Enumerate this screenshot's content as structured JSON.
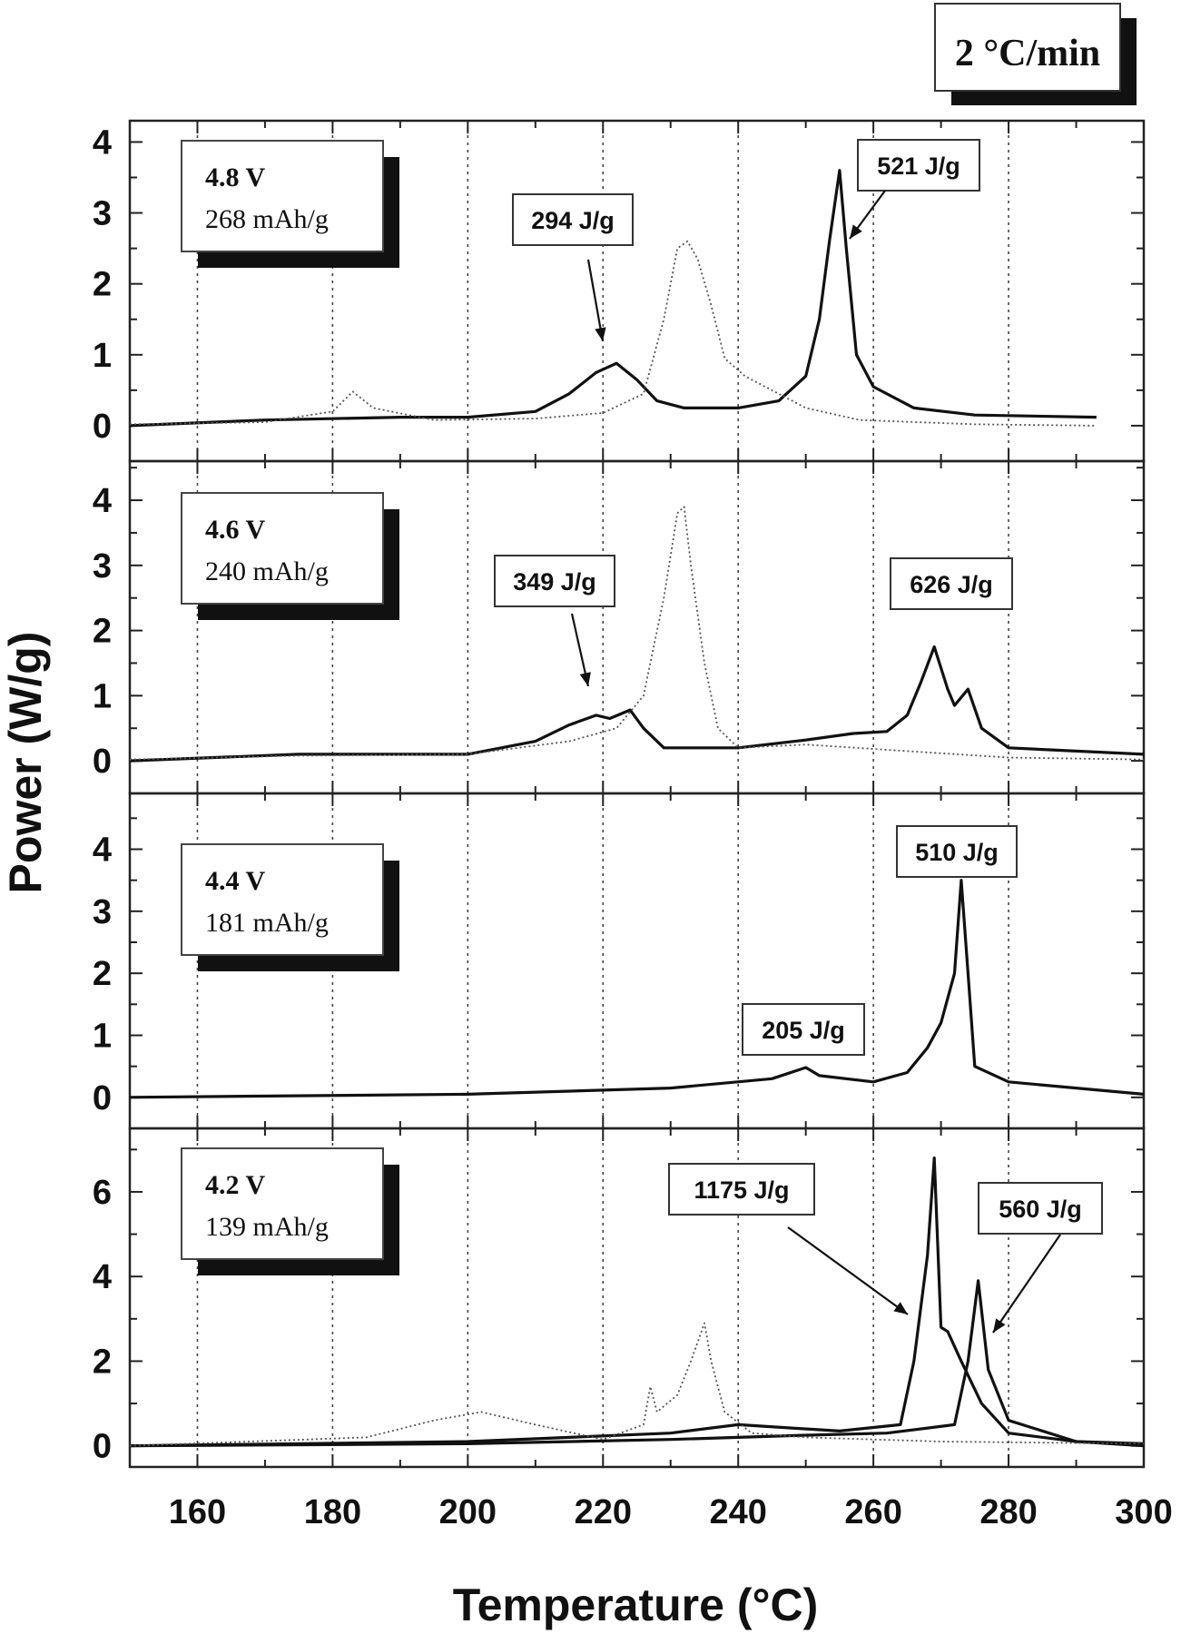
{
  "chart_data": {
    "type": "line",
    "rate_label": "2 °C/min",
    "xlabel": "Temperature (°C)",
    "ylabel": "Power (W/g)",
    "xlim": [
      150,
      300
    ],
    "x_ticks": [
      160,
      180,
      200,
      220,
      240,
      260,
      280,
      300
    ],
    "x_gridlines": [
      160,
      180,
      200,
      220,
      240,
      260,
      280
    ],
    "grid": "vertical dotted",
    "panels": [
      {
        "label_voltage": "4.8 V",
        "label_capacity": "268 mAh/g",
        "ylim": [
          -0.5,
          4.3
        ],
        "y_ticks": [
          0,
          1,
          2,
          3,
          4
        ],
        "annotations": [
          "294 J/g",
          "521 J/g"
        ],
        "series": [
          {
            "style": "solid",
            "points": [
              [
                150,
                0.0
              ],
              [
                170,
                0.08
              ],
              [
                190,
                0.12
              ],
              [
                200,
                0.12
              ],
              [
                210,
                0.2
              ],
              [
                215,
                0.45
              ],
              [
                219,
                0.75
              ],
              [
                222,
                0.88
              ],
              [
                225,
                0.65
              ],
              [
                228,
                0.35
              ],
              [
                232,
                0.25
              ],
              [
                240,
                0.25
              ],
              [
                246,
                0.35
              ],
              [
                250,
                0.7
              ],
              [
                252,
                1.5
              ],
              [
                253.5,
                2.6
              ],
              [
                255,
                3.6
              ],
              [
                256,
                2.5
              ],
              [
                257.5,
                1.0
              ],
              [
                260,
                0.55
              ],
              [
                266,
                0.25
              ],
              [
                275,
                0.15
              ],
              [
                293,
                0.12
              ]
            ]
          },
          {
            "style": "dotted",
            "points": [
              [
                150,
                0.02
              ],
              [
                170,
                0.05
              ],
              [
                180,
                0.2
              ],
              [
                183,
                0.48
              ],
              [
                186,
                0.25
              ],
              [
                195,
                0.08
              ],
              [
                210,
                0.1
              ],
              [
                220,
                0.18
              ],
              [
                226,
                0.45
              ],
              [
                229,
                1.5
              ],
              [
                231,
                2.5
              ],
              [
                232.5,
                2.6
              ],
              [
                234,
                2.35
              ],
              [
                236,
                1.7
              ],
              [
                238,
                0.95
              ],
              [
                241,
                0.7
              ],
              [
                245,
                0.5
              ],
              [
                250,
                0.25
              ],
              [
                258,
                0.08
              ],
              [
                275,
                0.02
              ],
              [
                293,
                0.0
              ]
            ]
          }
        ]
      },
      {
        "label_voltage": "4.6 V",
        "label_capacity": "240 mAh/g",
        "ylim": [
          -0.5,
          4.6
        ],
        "y_ticks": [
          0,
          1,
          2,
          3,
          4
        ],
        "annotations": [
          "349 J/g",
          "626 J/g"
        ],
        "series": [
          {
            "style": "solid",
            "points": [
              [
                150,
                0.0
              ],
              [
                175,
                0.1
              ],
              [
                200,
                0.1
              ],
              [
                210,
                0.3
              ],
              [
                215,
                0.55
              ],
              [
                219,
                0.7
              ],
              [
                221,
                0.65
              ],
              [
                224,
                0.78
              ],
              [
                226,
                0.5
              ],
              [
                229,
                0.2
              ],
              [
                240,
                0.2
              ],
              [
                250,
                0.32
              ],
              [
                257,
                0.42
              ],
              [
                262,
                0.45
              ],
              [
                265,
                0.7
              ],
              [
                267,
                1.2
              ],
              [
                269,
                1.75
              ],
              [
                271,
                1.1
              ],
              [
                272,
                0.85
              ],
              [
                274,
                1.1
              ],
              [
                276,
                0.5
              ],
              [
                280,
                0.2
              ],
              [
                290,
                0.15
              ],
              [
                300,
                0.1
              ]
            ]
          },
          {
            "style": "dotted",
            "points": [
              [
                150,
                0.02
              ],
              [
                175,
                0.08
              ],
              [
                200,
                0.1
              ],
              [
                215,
                0.3
              ],
              [
                222,
                0.5
              ],
              [
                226,
                1.0
              ],
              [
                229,
                2.5
              ],
              [
                231,
                3.8
              ],
              [
                232,
                3.9
              ],
              [
                233,
                3.0
              ],
              [
                235,
                1.5
              ],
              [
                237,
                0.5
              ],
              [
                240,
                0.2
              ],
              [
                250,
                0.25
              ],
              [
                265,
                0.15
              ],
              [
                280,
                0.05
              ],
              [
                300,
                0.02
              ]
            ]
          }
        ]
      },
      {
        "label_voltage": "4.4 V",
        "label_capacity": "181 mAh/g",
        "ylim": [
          -0.5,
          4.9
        ],
        "y_ticks": [
          0,
          1,
          2,
          3,
          4
        ],
        "annotations": [
          "205 J/g",
          "510 J/g"
        ],
        "series": [
          {
            "style": "solid",
            "points": [
              [
                150,
                0.0
              ],
              [
                200,
                0.05
              ],
              [
                230,
                0.15
              ],
              [
                245,
                0.3
              ],
              [
                250,
                0.48
              ],
              [
                252,
                0.35
              ],
              [
                260,
                0.25
              ],
              [
                265,
                0.4
              ],
              [
                268,
                0.8
              ],
              [
                270,
                1.2
              ],
              [
                272,
                2.0
              ],
              [
                273,
                3.5
              ],
              [
                274,
                2.0
              ],
              [
                275,
                0.5
              ],
              [
                280,
                0.25
              ],
              [
                290,
                0.15
              ],
              [
                300,
                0.05
              ]
            ]
          }
        ]
      },
      {
        "label_voltage": "4.2 V",
        "label_capacity": "139 mAh/g",
        "ylim": [
          -0.5,
          7.5
        ],
        "y_ticks": [
          0,
          2,
          4,
          6
        ],
        "annotations": [
          "1175 J/g",
          "560 J/g"
        ],
        "series": [
          {
            "style": "solid",
            "points": [
              [
                150,
                0.0
              ],
              [
                200,
                0.1
              ],
              [
                230,
                0.3
              ],
              [
                240,
                0.5
              ],
              [
                255,
                0.35
              ],
              [
                264,
                0.5
              ],
              [
                266,
                2.0
              ],
              [
                268,
                4.5
              ],
              [
                269,
                6.8
              ],
              [
                270,
                2.8
              ],
              [
                271,
                2.7
              ],
              [
                273,
                2.0
              ],
              [
                276,
                1.0
              ],
              [
                280,
                0.3
              ],
              [
                290,
                0.1
              ],
              [
                300,
                0.05
              ]
            ]
          },
          {
            "style": "solid",
            "points": [
              [
                150,
                0.0
              ],
              [
                200,
                0.05
              ],
              [
                230,
                0.15
              ],
              [
                250,
                0.25
              ],
              [
                262,
                0.3
              ],
              [
                272,
                0.5
              ],
              [
                274,
                2.0
              ],
              [
                275.5,
                3.9
              ],
              [
                277,
                1.8
              ],
              [
                280,
                0.6
              ],
              [
                290,
                0.1
              ],
              [
                300,
                0.0
              ]
            ]
          },
          {
            "style": "dotted",
            "points": [
              [
                150,
                0.0
              ],
              [
                185,
                0.2
              ],
              [
                195,
                0.6
              ],
              [
                202,
                0.8
              ],
              [
                210,
                0.5
              ],
              [
                220,
                0.15
              ],
              [
                226,
                0.5
              ],
              [
                227,
                1.4
              ],
              [
                228,
                0.8
              ],
              [
                231,
                1.2
              ],
              [
                233,
                2.0
              ],
              [
                235,
                2.9
              ],
              [
                236,
                2.0
              ],
              [
                238,
                0.8
              ],
              [
                242,
                0.3
              ],
              [
                250,
                0.2
              ],
              [
                260,
                0.15
              ],
              [
                270,
                0.1
              ],
              [
                300,
                0.05
              ]
            ]
          }
        ]
      }
    ]
  }
}
